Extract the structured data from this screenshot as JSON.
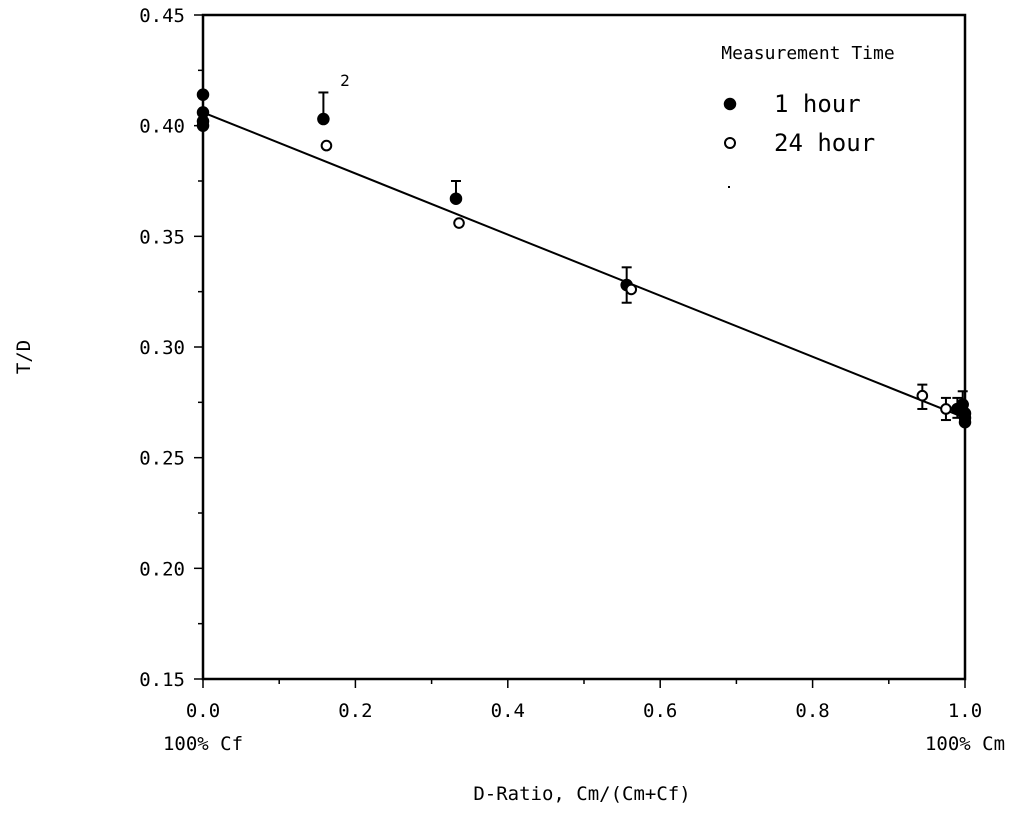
{
  "chart_data": {
    "type": "scatter",
    "title": "",
    "xlabel": "D-Ratio, Cm/(Cm+Cf)",
    "ylabel": "T/D",
    "xlim": [
      0.0,
      1.0
    ],
    "ylim": [
      0.15,
      0.45
    ],
    "x_ticks": [
      "0.0",
      "0.2",
      "0.4",
      "0.6",
      "0.8",
      "1.0"
    ],
    "y_ticks": [
      "0.15",
      "0.20",
      "0.25",
      "0.30",
      "0.35",
      "0.40",
      "0.45"
    ],
    "x_end_labels": {
      "left": "100% Cf",
      "right": "100% Cm"
    },
    "grid": false,
    "legend": {
      "title": "Measurement Time",
      "placement": "top-right",
      "entries": [
        "1 hour",
        "24 hour"
      ]
    },
    "annotations": [
      {
        "text": "2",
        "x": 0.18,
        "y": 0.418
      }
    ],
    "series": [
      {
        "name": "1 hour",
        "marker": "filled-circle",
        "points": [
          {
            "x": 0.0,
            "y": 0.414
          },
          {
            "x": 0.0,
            "y": 0.406
          },
          {
            "x": 0.0,
            "y": 0.402
          },
          {
            "x": 0.0,
            "y": 0.4
          },
          {
            "x": 0.158,
            "y": 0.403,
            "err_plus": 0.012,
            "err_minus": 0.0
          },
          {
            "x": 0.332,
            "y": 0.367,
            "err_plus": 0.008,
            "err_minus": 0.0
          },
          {
            "x": 0.556,
            "y": 0.328,
            "err_plus": 0.008,
            "err_minus": 0.008
          },
          {
            "x": 0.99,
            "y": 0.272,
            "err_plus": 0.005,
            "err_minus": 0.004
          },
          {
            "x": 0.997,
            "y": 0.274,
            "err_plus": 0.006,
            "err_minus": 0.005
          },
          {
            "x": 1.0,
            "y": 0.27
          },
          {
            "x": 1.0,
            "y": 0.268
          },
          {
            "x": 1.0,
            "y": 0.266
          }
        ]
      },
      {
        "name": "24 hour",
        "marker": "open-circle",
        "points": [
          {
            "x": 0.162,
            "y": 0.391
          },
          {
            "x": 0.336,
            "y": 0.356
          },
          {
            "x": 0.562,
            "y": 0.326
          },
          {
            "x": 0.944,
            "y": 0.278,
            "err_plus": 0.005,
            "err_minus": 0.006
          },
          {
            "x": 0.975,
            "y": 0.272,
            "err_plus": 0.005,
            "err_minus": 0.005
          }
        ]
      }
    ],
    "fit_line": {
      "x": [
        0.0,
        1.0
      ],
      "y": [
        0.406,
        0.268
      ]
    },
    "colors": {
      "marks": "#000000",
      "background": "#ffffff"
    }
  }
}
